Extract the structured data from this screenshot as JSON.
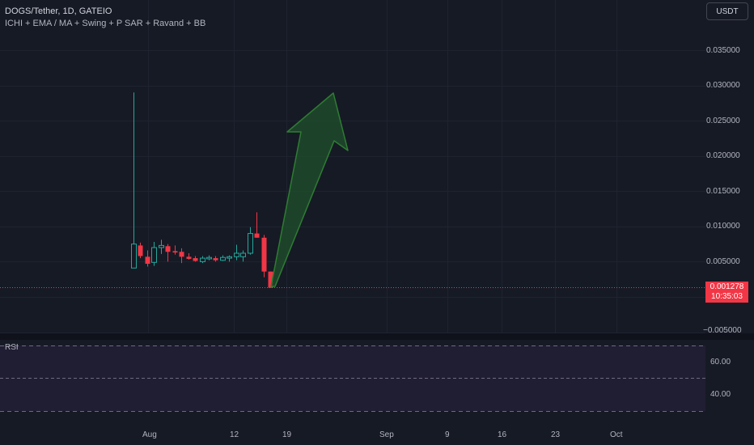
{
  "header": {
    "title": "DOGS/Tether, 1D, GATEIO",
    "indicators": "ICHI + EMA / MA + Swing + P SAR + Ravand  + BB"
  },
  "currency_button": "USDT",
  "price_axis": [
    "0.035000",
    "0.030000",
    "0.025000",
    "0.020000",
    "0.015000",
    "0.010000",
    "0.005000",
    "−0.005000"
  ],
  "current_price": {
    "value": "0.001278",
    "countdown": "10:35:03",
    "color": "#f23645"
  },
  "rsi": {
    "label": "RSI",
    "levels": [
      "60.00",
      "40.00"
    ]
  },
  "time_axis": [
    "Aug",
    "12",
    "19",
    "Sep",
    "9",
    "16",
    "23",
    "Oct"
  ],
  "colors": {
    "background": "#161a25",
    "up": "#26a69a",
    "down": "#f23645",
    "arrow_fill": "#1e4a2c",
    "arrow_stroke": "#2e7d32"
  },
  "chart_data": {
    "type": "candlestick",
    "symbol": "DOGS/Tether",
    "interval": "1D",
    "exchange": "GATEIO",
    "y_range": [
      -0.006,
      0.04
    ],
    "candles": [
      {
        "o": 0.0041,
        "h": 0.029,
        "l": 0.0041,
        "c": 0.0075
      },
      {
        "o": 0.0073,
        "h": 0.0077,
        "l": 0.0055,
        "c": 0.0058
      },
      {
        "o": 0.0057,
        "h": 0.0066,
        "l": 0.0043,
        "c": 0.0047
      },
      {
        "o": 0.0049,
        "h": 0.0078,
        "l": 0.0044,
        "c": 0.007
      },
      {
        "o": 0.007,
        "h": 0.0081,
        "l": 0.0061,
        "c": 0.0073
      },
      {
        "o": 0.0072,
        "h": 0.0075,
        "l": 0.005,
        "c": 0.0064
      },
      {
        "o": 0.0065,
        "h": 0.0073,
        "l": 0.006,
        "c": 0.0063
      },
      {
        "o": 0.0064,
        "h": 0.0069,
        "l": 0.0048,
        "c": 0.0057
      },
      {
        "o": 0.0057,
        "h": 0.0062,
        "l": 0.0053,
        "c": 0.0054
      },
      {
        "o": 0.0055,
        "h": 0.0058,
        "l": 0.005,
        "c": 0.0051
      },
      {
        "o": 0.005,
        "h": 0.0058,
        "l": 0.0048,
        "c": 0.0055
      },
      {
        "o": 0.0054,
        "h": 0.0059,
        "l": 0.0052,
        "c": 0.0056
      },
      {
        "o": 0.0055,
        "h": 0.0058,
        "l": 0.005,
        "c": 0.0052
      },
      {
        "o": 0.0052,
        "h": 0.0059,
        "l": 0.0051,
        "c": 0.0056
      },
      {
        "o": 0.0055,
        "h": 0.0059,
        "l": 0.005,
        "c": 0.0057
      },
      {
        "o": 0.0057,
        "h": 0.0074,
        "l": 0.0052,
        "c": 0.0062
      },
      {
        "o": 0.0057,
        "h": 0.0066,
        "l": 0.005,
        "c": 0.0062
      },
      {
        "o": 0.0062,
        "h": 0.0099,
        "l": 0.006,
        "c": 0.009
      },
      {
        "o": 0.009,
        "h": 0.012,
        "l": 0.0084,
        "c": 0.0084
      },
      {
        "o": 0.0084,
        "h": 0.0088,
        "l": 0.0028,
        "c": 0.0036
      },
      {
        "o": 0.0036,
        "h": 0.0036,
        "l": 0.0013,
        "c": 0.0013
      }
    ]
  }
}
